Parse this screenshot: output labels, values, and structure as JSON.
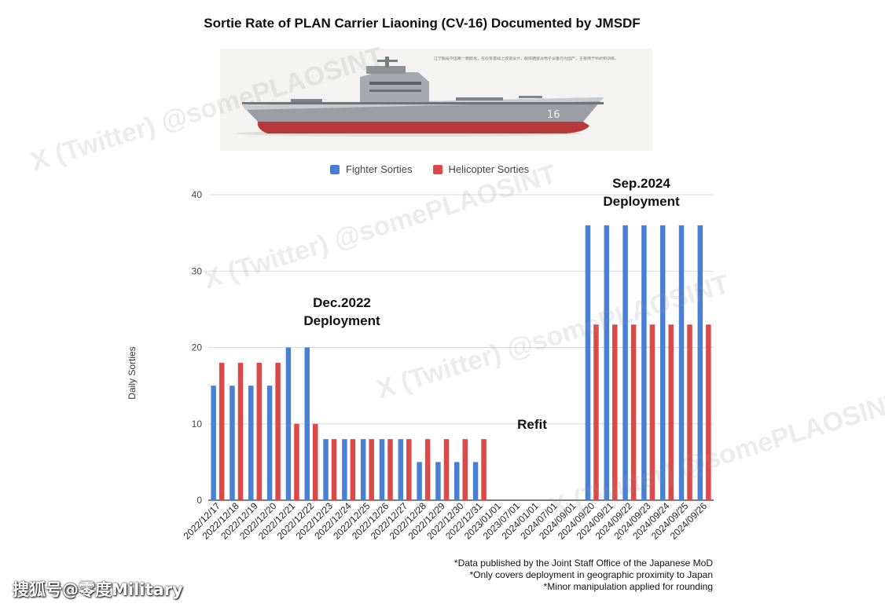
{
  "header": {
    "title": "Sortie Rate of PLAN Carrier Liaoning (CV-16) Documented by JMSDF"
  },
  "banner": {
    "hull_number": "16",
    "caption": "辽宁舰是中国第一艘航母，在原有基础上改进设计，舰体舾装及电子设备均为国产，主要用于科研和训练。"
  },
  "colors": {
    "fighter": "#4a7fd6",
    "helicopter": "#db4a48",
    "grid": "#d9d9d9"
  },
  "annotations": {
    "dec": [
      "Dec.2022",
      "Deployment"
    ],
    "sep": [
      "Sep.2024",
      "Deployment"
    ],
    "refit": "Refit"
  },
  "chart_data": {
    "type": "bar",
    "title": "Sortie Rate of PLAN Carrier Liaoning (CV-16) Documented by JMSDF",
    "xlabel": "",
    "ylabel": "Daily Sorties",
    "ylim": [
      0,
      40
    ],
    "yticks": [
      0,
      10,
      20,
      30,
      40
    ],
    "grid": true,
    "legend_position": "top",
    "categories": [
      "2022/12/17",
      "2022/12/18",
      "2022/12/19",
      "2022/12/20",
      "2022/12/21",
      "2022/12/22",
      "2022/12/23",
      "2022/12/24",
      "2022/12/25",
      "2022/12/26",
      "2022/12/27",
      "2022/12/28",
      "2022/12/29",
      "2022/12/30",
      "2022/12/31",
      "2023/01/01",
      "2023/07/01",
      "2024/01/01",
      "2024/07/01",
      "2024/09/01",
      "2024/09/20",
      "2024/09/21",
      "2024/09/22",
      "2024/09/23",
      "2024/09/24",
      "2024/09/25",
      "2024/09/26"
    ],
    "series": [
      {
        "name": "Fighter Sorties",
        "values": [
          15,
          15,
          15,
          15,
          20,
          20,
          8,
          8,
          8,
          8,
          8,
          5,
          5,
          5,
          5,
          0,
          0,
          0,
          0,
          0,
          36,
          36,
          36,
          36,
          36,
          36,
          36
        ]
      },
      {
        "name": "Helicopter Sorties",
        "values": [
          18,
          18,
          18,
          18,
          10,
          10,
          8,
          8,
          8,
          8,
          8,
          8,
          8,
          8,
          8,
          0,
          0,
          0,
          0,
          0,
          23,
          23,
          23,
          23,
          23,
          23,
          23
        ]
      }
    ]
  },
  "footnotes": [
    "*Data published by the Joint Staff Office of the Japanese MoD",
    "*Only covers deployment in geographic proximity to Japan",
    "*Minor manipulation applied for rounding"
  ],
  "watermarks": {
    "text": "X (Twitter) @somePLAOSINT"
  },
  "source_mark": "搜狐号@零度Military"
}
